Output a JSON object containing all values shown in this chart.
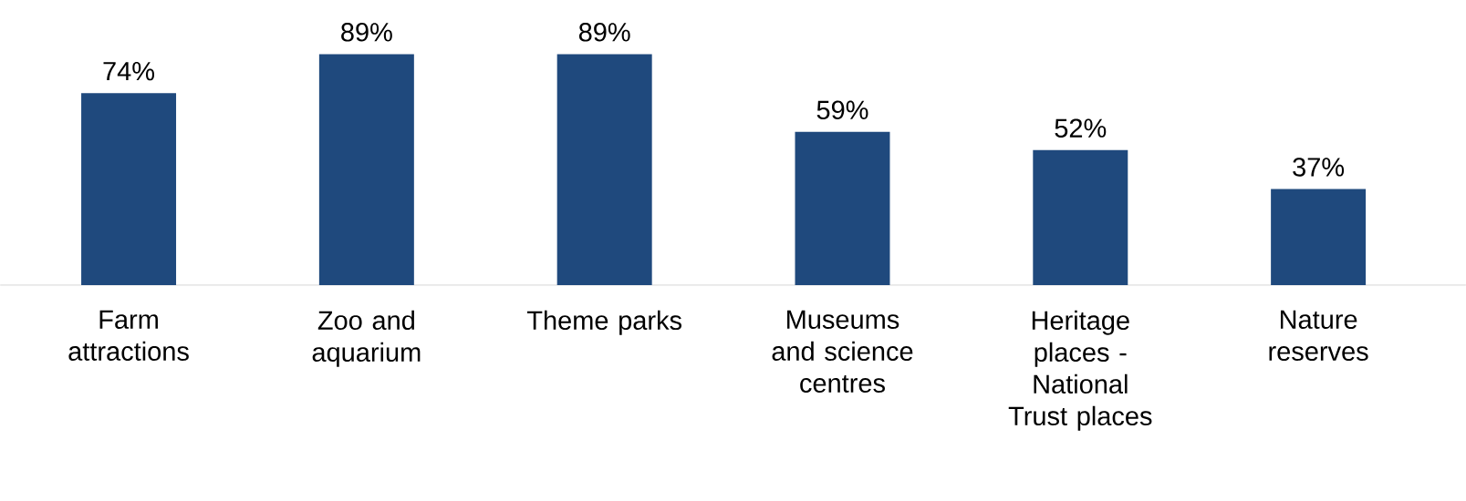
{
  "chart_data": {
    "type": "bar",
    "categories": [
      "Farm attractions",
      "Zoo and aquarium",
      "Theme parks",
      "Museums and science centres",
      "Heritage places  - National Trust places",
      "Nature reserves"
    ],
    "values": [
      74,
      89,
      89,
      59,
      52,
      37
    ],
    "value_labels": [
      "74%",
      "89%",
      "89%",
      "59%",
      "52%",
      "37%"
    ],
    "color": "#1f497d"
  }
}
